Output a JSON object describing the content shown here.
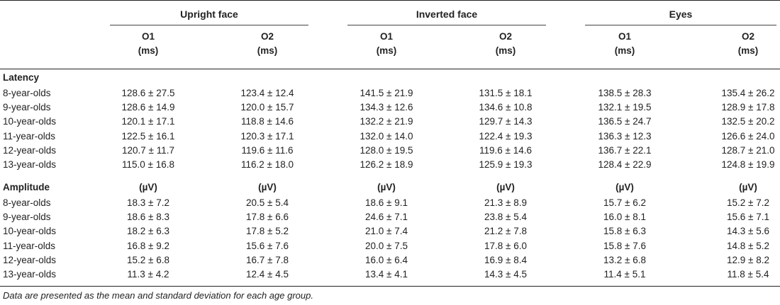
{
  "header": {
    "groups": [
      {
        "label": "Upright face",
        "cols": [
          {
            "name": "O1",
            "unit": "(ms)"
          },
          {
            "name": "O2",
            "unit": "(ms)"
          }
        ]
      },
      {
        "label": "Inverted face",
        "cols": [
          {
            "name": "O1",
            "unit": "(ms)"
          },
          {
            "name": "O2",
            "unit": "(ms)"
          }
        ]
      },
      {
        "label": "Eyes",
        "cols": [
          {
            "name": "O1",
            "unit": "(ms)"
          },
          {
            "name": "O2",
            "unit": "(ms)"
          }
        ]
      }
    ]
  },
  "latency": {
    "label": "Latency",
    "rows": [
      {
        "label": "8-year-olds",
        "values": [
          "128.6 ± 27.5",
          "123.4 ± 12.4",
          "141.5 ± 21.9",
          "131.5 ± 18.1",
          "138.5 ± 28.3",
          "135.4 ± 26.2"
        ]
      },
      {
        "label": "9-year-olds",
        "values": [
          "128.6 ± 14.9",
          "120.0 ± 15.7",
          "134.3 ± 12.6",
          "134.6 ± 10.8",
          "132.1 ± 19.5",
          "128.9 ± 17.8"
        ]
      },
      {
        "label": "10-year-olds",
        "values": [
          "120.1 ± 17.1",
          "118.8 ± 14.6",
          "132.2 ± 21.9",
          "129.7 ± 14.3",
          "136.5 ± 24.7",
          "132.5 ± 20.2"
        ]
      },
      {
        "label": "11-year-olds",
        "values": [
          "122.5 ± 16.1",
          "120.3 ± 17.1",
          "132.0 ± 14.0",
          "122.4 ± 19.3",
          "136.3 ± 12.3",
          "126.6 ± 24.0"
        ]
      },
      {
        "label": "12-year-olds",
        "values": [
          "120.7 ± 11.7",
          "119.6 ± 11.6",
          "128.0 ± 19.5",
          "119.6 ± 14.6",
          "136.7 ± 22.1",
          "128.7 ± 21.0"
        ]
      },
      {
        "label": "13-year-olds",
        "values": [
          "115.0 ± 16.8",
          "116.2 ± 18.0",
          "126.2 ± 18.9",
          "125.9 ± 19.3",
          "128.4 ± 22.9",
          "124.8 ± 19.9"
        ]
      }
    ]
  },
  "amplitude": {
    "label": "Amplitude",
    "units": [
      "(µV)",
      "(µV)",
      "(µV)",
      "(µV)",
      "(µV)",
      "(µV)"
    ],
    "rows": [
      {
        "label": "8-year-olds",
        "values": [
          "18.3 ± 7.2",
          "20.5 ± 5.4",
          "18.6 ± 9.1",
          "21.3 ± 8.9",
          "15.7 ± 6.2",
          "15.2 ± 7.2"
        ]
      },
      {
        "label": "9-year-olds",
        "values": [
          "18.6 ± 8.3",
          "17.8 ± 6.6",
          "24.6 ± 7.1",
          "23.8 ± 5.4",
          "16.0 ± 8.1",
          "15.6 ± 7.1"
        ]
      },
      {
        "label": "10-year-olds",
        "values": [
          "18.2 ± 6.3",
          "17.8 ± 5.2",
          "21.0 ± 7.4",
          "21.2 ± 7.8",
          "15.8 ± 6.3",
          "14.3 ± 5.6"
        ]
      },
      {
        "label": "11-year-olds",
        "values": [
          "16.8 ± 9.2",
          "15.6 ± 7.6",
          "20.0 ± 7.5",
          "17.8 ± 6.0",
          "15.8 ± 7.6",
          "14.8 ± 5.2"
        ]
      },
      {
        "label": "12-year-olds",
        "values": [
          "15.2 ± 6.8",
          "16.7 ± 7.8",
          "16.0 ± 6.4",
          "16.9 ± 8.4",
          "13.2 ± 6.8",
          "12.9 ± 8.2"
        ]
      },
      {
        "label": "13-year-olds",
        "values": [
          "11.3 ± 4.2",
          "12.4 ± 4.5",
          "13.4 ± 4.1",
          "14.3 ± 4.5",
          "11.4 ± 5.1",
          "11.8 ± 5.4"
        ]
      }
    ]
  },
  "footnote": "Data are presented as the mean and standard deviation for each age group."
}
